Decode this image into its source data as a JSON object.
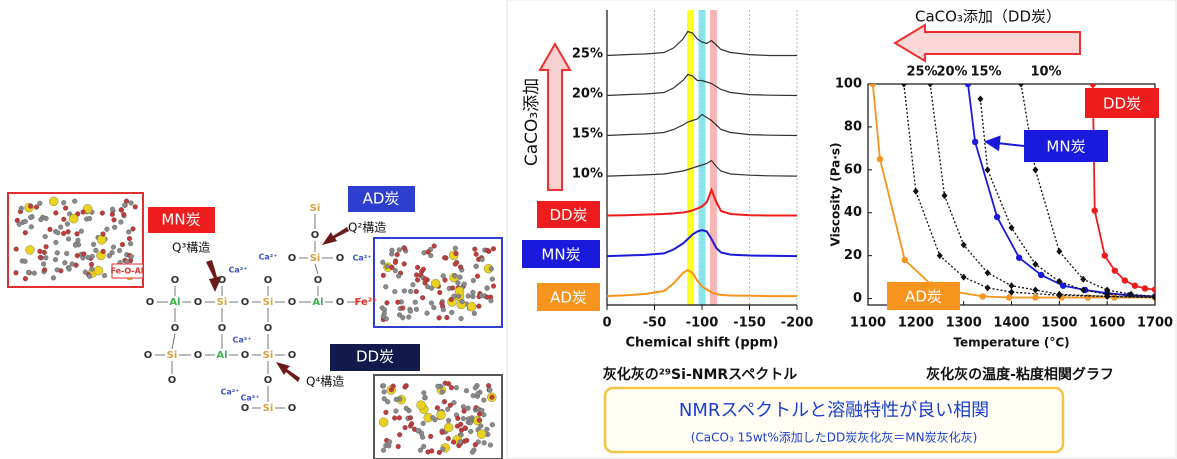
{
  "diagram": {
    "labels": {
      "mn": "MN炭",
      "ad": "AD炭",
      "dd": "DD炭",
      "q3": "Q³構造",
      "q2": "Q²構造",
      "q4": "Q⁴構造",
      "fe_o_al": "Fe-O-Al"
    },
    "atoms": [
      "Si",
      "O",
      "Ca²⁺",
      "O",
      "Si",
      "O",
      "Ca²⁺",
      "O",
      "O",
      "O",
      "O",
      "Ca²⁺",
      "O",
      "Al",
      "O",
      "Si",
      "O",
      "Si",
      "O",
      "Al",
      "O",
      "Fe²⁺",
      "O",
      "O",
      "O",
      "Ca²⁺",
      "O",
      "Si",
      "O",
      "Al",
      "O",
      "Si",
      "O",
      "O",
      "O",
      "Ca²⁺",
      "Ca²⁺",
      "O",
      "Si",
      "O"
    ]
  },
  "chart_data": [
    {
      "type": "spectra",
      "y_label": "CaCO₃添加",
      "x_label": "Chemical shift (ppm)",
      "caption": "灰化灰の²⁹Si-NMRスペクトル",
      "xlim": [
        0,
        -200
      ],
      "xticks": [
        0,
        -50,
        -100,
        -150,
        -200
      ],
      "grid": true,
      "bands": [
        {
          "center": -88,
          "color": "#ffff00"
        },
        {
          "center": -100,
          "color": "#6fe3f0"
        },
        {
          "center": -112,
          "color": "#f7a8a8"
        }
      ],
      "x": [
        0,
        -20,
        -40,
        -60,
        -70,
        -80,
        -85,
        -90,
        -95,
        -100,
        -105,
        -110,
        -115,
        -120,
        -130,
        -150,
        -170,
        -200
      ],
      "series": [
        {
          "name": "25%",
          "color": "#333333",
          "values": [
            0.05,
            0.08,
            0.1,
            0.15,
            0.3,
            0.6,
            0.85,
            0.8,
            0.6,
            0.5,
            0.45,
            0.55,
            0.4,
            0.25,
            0.15,
            0.08,
            0.05,
            0.05
          ]
        },
        {
          "name": "20%",
          "color": "#333333",
          "values": [
            0.05,
            0.08,
            0.1,
            0.15,
            0.3,
            0.55,
            0.75,
            0.7,
            0.55,
            0.55,
            0.5,
            0.45,
            0.35,
            0.25,
            0.15,
            0.08,
            0.06,
            0.05
          ]
        },
        {
          "name": "15%",
          "color": "#333333",
          "values": [
            0.05,
            0.08,
            0.1,
            0.15,
            0.25,
            0.4,
            0.5,
            0.55,
            0.6,
            0.75,
            0.65,
            0.55,
            0.4,
            0.25,
            0.15,
            0.08,
            0.06,
            0.05
          ]
        },
        {
          "name": "10%",
          "color": "#333333",
          "values": [
            0.03,
            0.05,
            0.07,
            0.1,
            0.15,
            0.2,
            0.25,
            0.3,
            0.35,
            0.4,
            0.45,
            0.55,
            0.35,
            0.2,
            0.1,
            0.06,
            0.04,
            0.03
          ]
        },
        {
          "name": "DD炭",
          "color": "#ee1c1c",
          "values": [
            0.05,
            0.06,
            0.08,
            0.1,
            0.12,
            0.15,
            0.18,
            0.22,
            0.28,
            0.35,
            0.5,
            0.9,
            0.5,
            0.2,
            0.1,
            0.06,
            0.05,
            0.05
          ]
        },
        {
          "name": "MN炭",
          "color": "#1a1adc",
          "values": [
            0.03,
            0.05,
            0.07,
            0.12,
            0.25,
            0.45,
            0.6,
            0.75,
            0.85,
            0.9,
            0.85,
            0.6,
            0.3,
            0.15,
            0.08,
            0.05,
            0.04,
            0.03
          ]
        },
        {
          "name": "AD炭",
          "color": "#f7941d",
          "values": [
            0.03,
            0.06,
            0.1,
            0.2,
            0.45,
            0.8,
            0.9,
            0.8,
            0.55,
            0.35,
            0.25,
            0.15,
            0.1,
            0.07,
            0.05,
            0.04,
            0.03,
            0.03
          ]
        }
      ]
    },
    {
      "type": "line",
      "title": "CaCO₃添加（DD炭）",
      "x_label": "Temperature (°C)",
      "y_label": "Viscosity (Pa·s)",
      "caption": "灰化灰の温度-粘度相関グラフ",
      "xlim": [
        1100,
        1700
      ],
      "xticks": [
        1100,
        1200,
        1300,
        1400,
        1500,
        1600,
        1700
      ],
      "ylim": [
        -3,
        100
      ],
      "yticks": [
        0,
        20,
        40,
        60,
        80,
        100
      ],
      "series": [
        {
          "name": "DD炭",
          "color": "#ee1c1c",
          "marker": "circle",
          "dash": false,
          "x": [
            1570,
            1574,
            1595,
            1616,
            1637,
            1658,
            1679,
            1700
          ],
          "values": [
            100,
            41,
            20,
            13,
            8.4,
            6,
            4.7,
            4.2
          ]
        },
        {
          "name": "MN炭",
          "color": "#1a1adc",
          "marker": "circle",
          "dash": false,
          "x": [
            1309,
            1324,
            1370,
            1416,
            1462,
            1508,
            1554,
            1600,
            1646,
            1700
          ],
          "values": [
            100,
            73,
            38,
            19,
            11,
            6,
            4,
            2.5,
            1.5,
            1
          ]
        },
        {
          "name": "AD炭",
          "color": "#f7941d",
          "marker": "circle",
          "dash": false,
          "x": [
            1110,
            1125,
            1177,
            1232,
            1286,
            1340,
            1395,
            1450,
            1505,
            1560,
            1615,
            1700
          ],
          "values": [
            100,
            65,
            18,
            6.5,
            3,
            1,
            0.5,
            0.5,
            0.5,
            0.5,
            0.5,
            0.5
          ]
        },
        {
          "name": "25%",
          "color": "#111111",
          "marker": "diamond",
          "dash": true,
          "x": [
            1175,
            1200,
            1250,
            1300,
            1350,
            1400,
            1500,
            1600,
            1700
          ],
          "values": [
            100,
            50,
            20,
            10,
            5,
            3,
            1.5,
            1,
            0.5
          ]
        },
        {
          "name": "20%",
          "color": "#111111",
          "marker": "diamond",
          "dash": true,
          "x": [
            1230,
            1260,
            1300,
            1350,
            1400,
            1450,
            1500,
            1600,
            1700
          ],
          "values": [
            100,
            48,
            25,
            12,
            6,
            4,
            2,
            1,
            0.5
          ]
        },
        {
          "name": "15%",
          "color": "#111111",
          "marker": "diamond",
          "dash": true,
          "x": [
            1335,
            1350,
            1400,
            1450,
            1500,
            1550,
            1600,
            1700
          ],
          "values": [
            93,
            60,
            33,
            16,
            8,
            4,
            2,
            1
          ]
        },
        {
          "name": "10%",
          "color": "#111111",
          "marker": "diamond",
          "dash": true,
          "x": [
            1420,
            1450,
            1500,
            1550,
            1600,
            1650,
            1700
          ],
          "values": [
            100,
            60,
            22,
            9,
            4,
            2,
            1
          ]
        }
      ]
    }
  ],
  "summary": {
    "headline": "NMRスペクトルと溶融特性が良い相関",
    "note": "(CaCO₃ 15wt%添加したDD炭灰化灰＝MN炭灰化灰)"
  }
}
